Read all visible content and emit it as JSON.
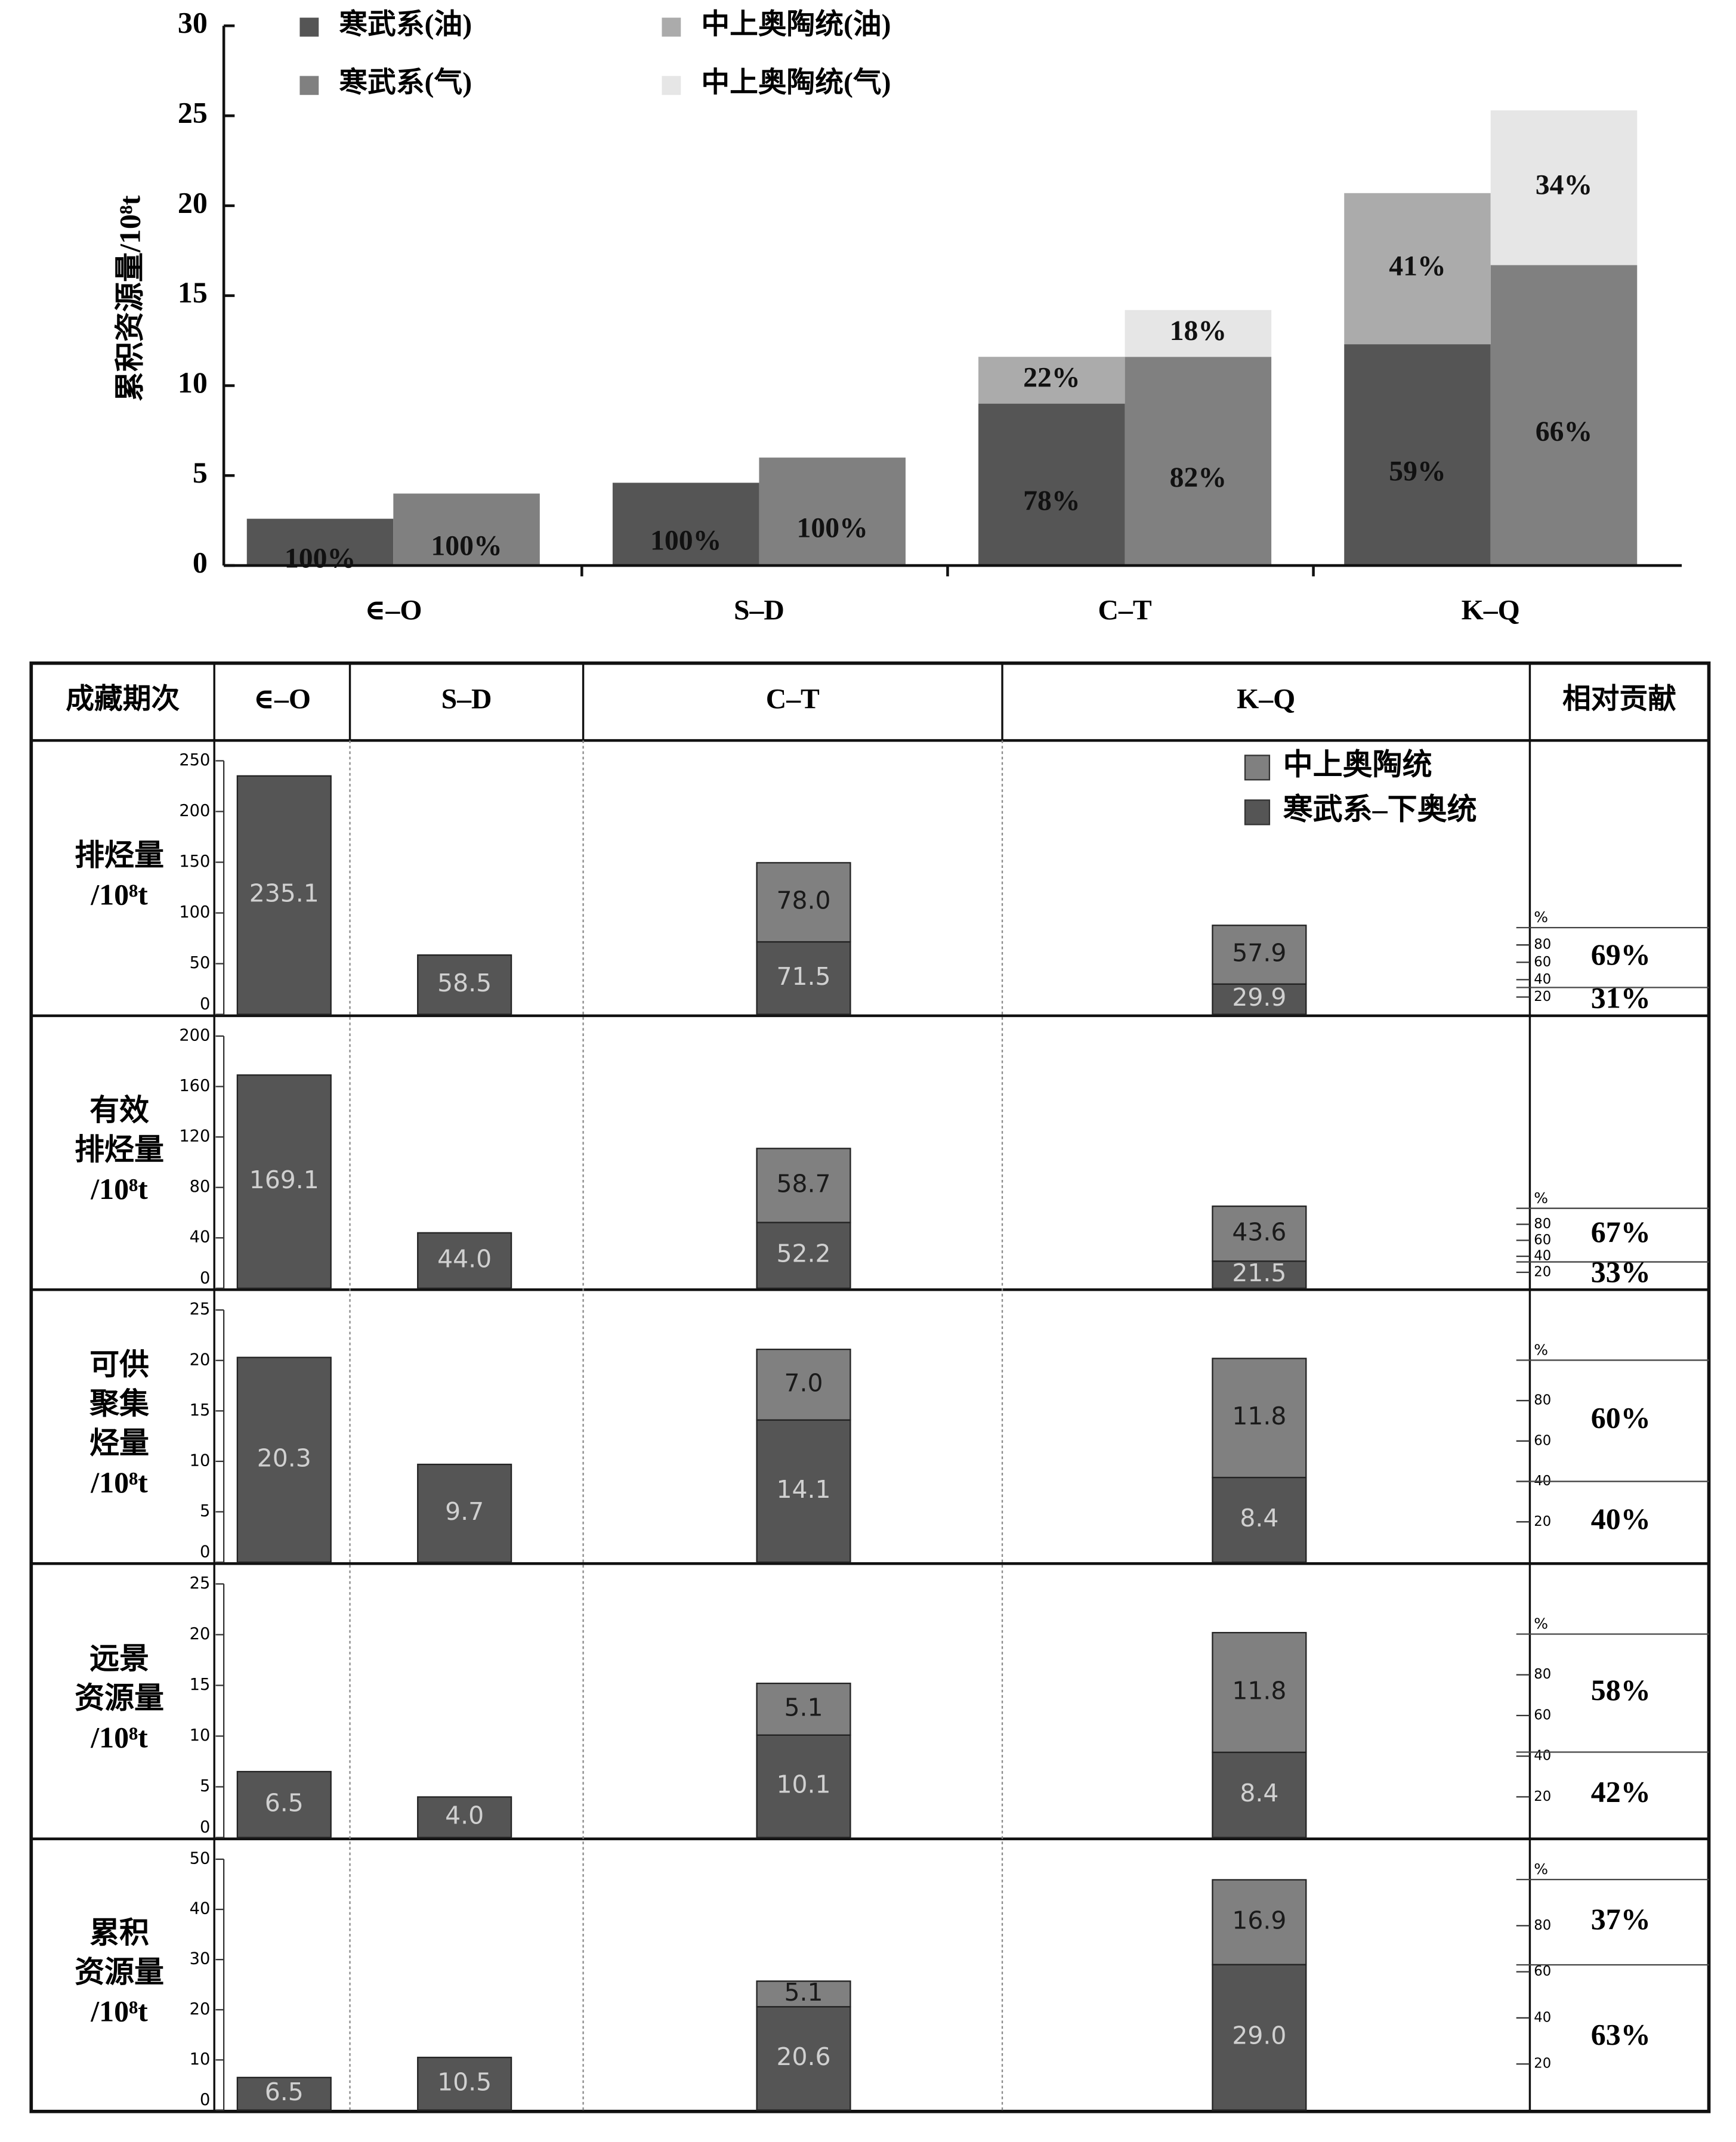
{
  "chart_data": [
    {
      "type": "bar",
      "ylabel": "累积资源量/10⁸t",
      "categories": [
        "∈–O",
        "S–D",
        "C–T",
        "K–Q"
      ],
      "ylim": [
        0,
        30
      ],
      "yticks": [
        0,
        5,
        10,
        15,
        20,
        25,
        30
      ],
      "series": [
        {
          "name": "寒武系(油)",
          "color": "#555555",
          "values": [
            2.6,
            4.6,
            9.0,
            12.3
          ],
          "labels": [
            "100%",
            "100%",
            "78%",
            "59%"
          ]
        },
        {
          "name": "寒武系(气)",
          "color": "#808080",
          "values": [
            4.0,
            6.0,
            11.6,
            16.7
          ],
          "labels": [
            "100%",
            "100%",
            "82%",
            "66%"
          ]
        },
        {
          "name": "中上奥陶统(油)",
          "color": "#ababab",
          "values": [
            null,
            null,
            2.6,
            8.4
          ],
          "labels": [
            null,
            null,
            "22%",
            "41%"
          ]
        },
        {
          "name": "中上奥陶统(气)",
          "color": "#e6e6e6",
          "values": [
            null,
            null,
            2.6,
            8.6
          ],
          "labels": [
            null,
            null,
            "18%",
            "34%"
          ]
        }
      ]
    },
    {
      "type": "bar",
      "ylabel_lines": [
        "排烃量",
        "/10⁸t"
      ],
      "ylim": [
        0,
        250
      ],
      "yticks": [
        0,
        50,
        100,
        150,
        200,
        250
      ],
      "series": [
        {
          "values": [
            235.1,
            58.5,
            71.5,
            29.9
          ],
          "value_labels": [
            "235.1",
            "58.5",
            "71.5",
            "29.9"
          ]
        },
        {
          "values": [
            null,
            null,
            78.0,
            57.9
          ],
          "value_labels": [
            null,
            null,
            "78.0",
            "57.9"
          ]
        }
      ],
      "contribution": [
        {
          "value": 69,
          "label": "69%"
        },
        {
          "value": 31,
          "label": "31%"
        }
      ]
    },
    {
      "type": "bar",
      "ylabel_lines": [
        "有效",
        "排烃量",
        "/10⁸t"
      ],
      "ylim": [
        0,
        200
      ],
      "yticks": [
        0,
        40,
        80,
        120,
        160,
        200
      ],
      "series": [
        {
          "values": [
            169.1,
            44.0,
            52.2,
            21.5
          ],
          "value_labels": [
            "169.1",
            "44.0",
            "52.2",
            "21.5"
          ]
        },
        {
          "values": [
            null,
            null,
            58.7,
            43.6
          ],
          "value_labels": [
            null,
            null,
            "58.7",
            "43.6"
          ]
        }
      ],
      "contribution": [
        {
          "value": 67,
          "label": "67%"
        },
        {
          "value": 33,
          "label": "33%"
        }
      ]
    },
    {
      "type": "bar",
      "ylabel_lines": [
        "可供",
        "聚集",
        "烃量",
        "/10⁸t"
      ],
      "ylim": [
        0,
        25
      ],
      "yticks": [
        0,
        5,
        10,
        15,
        20,
        25
      ],
      "series": [
        {
          "values": [
            20.3,
            9.7,
            14.1,
            8.4
          ],
          "value_labels": [
            "20.3",
            "9.7",
            "14.1",
            "8.4"
          ]
        },
        {
          "values": [
            null,
            null,
            7.0,
            11.8
          ],
          "value_labels": [
            null,
            null,
            "7.0",
            "11.8"
          ]
        }
      ],
      "contribution": [
        {
          "value": 60,
          "label": "60%"
        },
        {
          "value": 40,
          "label": "40%"
        }
      ]
    },
    {
      "type": "bar",
      "ylabel_lines": [
        "远景",
        "资源量",
        "/10⁸t"
      ],
      "ylim": [
        0,
        25
      ],
      "yticks": [
        0,
        5,
        10,
        15,
        20,
        25
      ],
      "series": [
        {
          "values": [
            6.5,
            4.0,
            10.1,
            8.4
          ],
          "value_labels": [
            "6.5",
            "4.0",
            "10.1",
            "8.4"
          ]
        },
        {
          "values": [
            null,
            null,
            5.1,
            11.8
          ],
          "value_labels": [
            null,
            null,
            "5.1",
            "11.8"
          ]
        }
      ],
      "contribution": [
        {
          "value": 58,
          "label": "58%"
        },
        {
          "value": 42,
          "label": "42%"
        }
      ]
    },
    {
      "type": "bar",
      "ylabel_lines": [
        "累积",
        "资源量",
        "/10⁸t"
      ],
      "ylim": [
        0,
        50
      ],
      "yticks": [
        0,
        10,
        20,
        30,
        40,
        50
      ],
      "series": [
        {
          "values": [
            6.5,
            10.5,
            20.6,
            29.0
          ],
          "value_labels": [
            "6.5",
            "10.5",
            "20.6",
            "29.0"
          ]
        },
        {
          "values": [
            null,
            null,
            5.1,
            16.9
          ],
          "value_labels": [
            null,
            null,
            "5.1",
            "16.9"
          ]
        }
      ],
      "contribution": [
        {
          "value": 37,
          "label": "37%"
        },
        {
          "value": 63,
          "label": "63%"
        }
      ]
    }
  ],
  "table": {
    "headers": [
      "成藏期次",
      "∈–O",
      "S–D",
      "C–T",
      "K–Q",
      "相对贡献"
    ],
    "legend": [
      {
        "name": "中上奥陶统",
        "color": "#808080"
      },
      {
        "name": "寒武系–下奥统",
        "color": "#555555"
      }
    ],
    "pct_unit": "%",
    "pct_ticks": [
      20,
      40,
      60,
      80
    ]
  }
}
